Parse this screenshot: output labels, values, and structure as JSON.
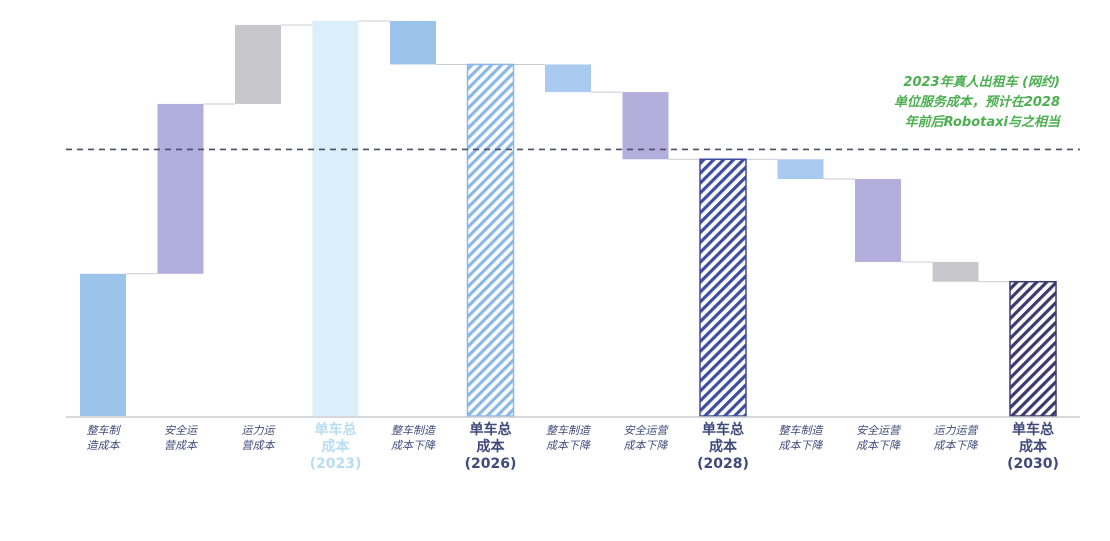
{
  "chart_data": {
    "type": "bar",
    "subtype": "waterfall",
    "ylim": [
      0,
      100
    ],
    "grid": false,
    "legend": "none",
    "reference_line": {
      "value": 68,
      "style": "dashed"
    },
    "annotation": {
      "lines": [
        "2023年真人出租车 (网约)",
        "单位服务成本，预计在2028",
        "年前后Robotaxi与之相当"
      ],
      "color": "#4caf50"
    },
    "categories": [
      {
        "label": [
          "整车制",
          "造成本"
        ],
        "kind": "increase",
        "base": 0,
        "value": 36,
        "color": "#9cc4ea"
      },
      {
        "label": [
          "安全运",
          "营成本"
        ],
        "kind": "increase",
        "base": 36,
        "value": 43,
        "color": "#b0aedc"
      },
      {
        "label": [
          "运力运",
          "营成本"
        ],
        "kind": "increase",
        "base": 79,
        "value": 20,
        "color": "#c8c8cc"
      },
      {
        "label": [
          "单车总",
          "成本",
          "(2023)"
        ],
        "kind": "total",
        "base": 0,
        "value": 100,
        "color": "#d4ecf8",
        "faint": true
      },
      {
        "label": [
          "整车制造",
          "成本下降"
        ],
        "kind": "decrease",
        "base": 89,
        "value": 11,
        "color": "#9cc4ea"
      },
      {
        "label": [
          "单车总",
          "成本",
          "(2026)"
        ],
        "kind": "total",
        "base": 0,
        "value": 89,
        "color": "#8ab8e6"
      },
      {
        "label": [
          "整车制造",
          "成本下降"
        ],
        "kind": "decrease",
        "base": 82,
        "value": 7,
        "color": "#a8cbef"
      },
      {
        "label": [
          "安全运营",
          "成本下降"
        ],
        "kind": "decrease",
        "base": 65,
        "value": 17,
        "color": "#b3aedc"
      },
      {
        "label": [
          "单车总",
          "成本",
          "(2028)"
        ],
        "kind": "total",
        "base": 0,
        "value": 65,
        "color": "#3f4e9c"
      },
      {
        "label": [
          "整车制造",
          "成本下降"
        ],
        "kind": "decrease",
        "base": 60,
        "value": 5,
        "color": "#a8cbef"
      },
      {
        "label": [
          "安全运营",
          "成本下降"
        ],
        "kind": "decrease",
        "base": 39,
        "value": 21,
        "color": "#b3aedc"
      },
      {
        "label": [
          "运力运营",
          "成本下降"
        ],
        "kind": "decrease",
        "base": 34,
        "value": 5,
        "color": "#c8c8cc"
      },
      {
        "label": [
          "单车总",
          "成本",
          "(2030)"
        ],
        "kind": "total",
        "base": 0,
        "value": 34,
        "color": "#3d3a70"
      }
    ]
  }
}
